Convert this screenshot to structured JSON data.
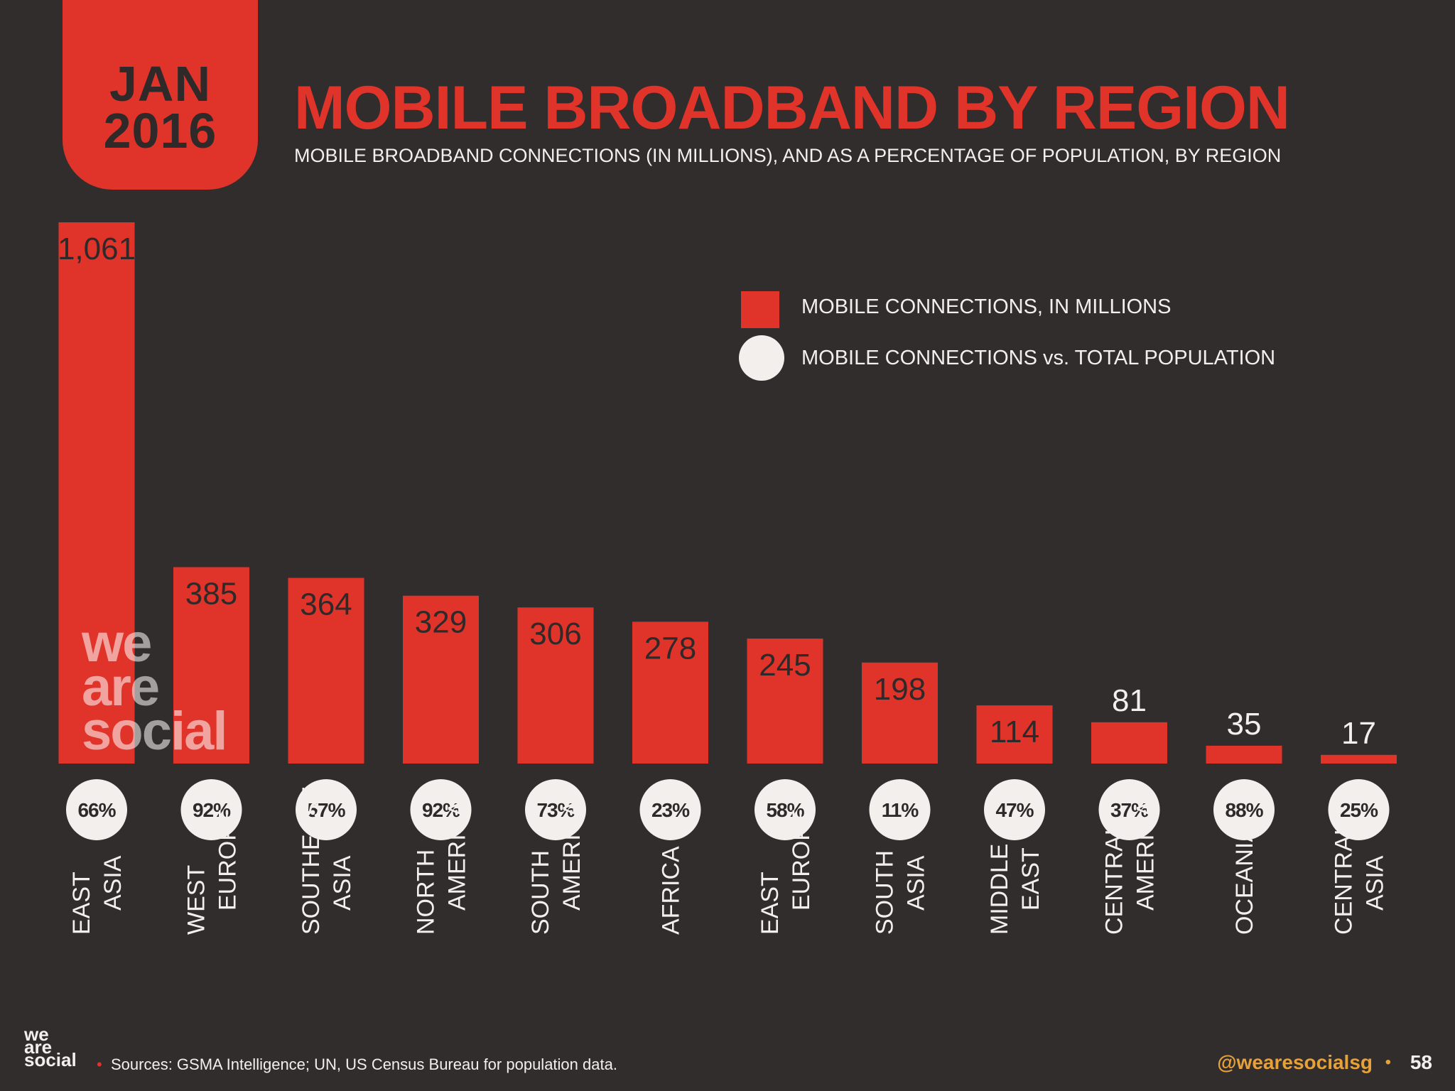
{
  "date_tab": {
    "month": "JAN",
    "year": "2016"
  },
  "title": "MOBILE BROADBAND BY REGION",
  "subtitle": "MOBILE BROADBAND CONNECTIONS (IN MILLIONS), AND AS A PERCENTAGE OF POPULATION, BY REGION",
  "legend": {
    "bars": "MOBILE CONNECTIONS, IN MILLIONS",
    "circles": "MOBILE CONNECTIONS vs. TOTAL POPULATION"
  },
  "watermark": [
    "we",
    "are",
    "social"
  ],
  "colors": {
    "accent": "#e0342b",
    "background": "#312d2c",
    "light": "#f2efed",
    "handle": "#e7a13a"
  },
  "chart_data": {
    "type": "bar",
    "categories": [
      [
        "EAST",
        "ASIA"
      ],
      [
        "WEST",
        "EUROPE"
      ],
      [
        "SOUTHEAST",
        "ASIA"
      ],
      [
        "NORTH",
        "AMERICA"
      ],
      [
        "SOUTH",
        "AMERICA"
      ],
      [
        "AFRICA"
      ],
      [
        "EAST",
        "EUROPE"
      ],
      [
        "SOUTH",
        "ASIA"
      ],
      [
        "MIDDLE",
        "EAST"
      ],
      [
        "CENTRAL",
        "AMERICA"
      ],
      [
        "OCEANIA"
      ],
      [
        "CENTRAL",
        "ASIA"
      ]
    ],
    "series": [
      {
        "name": "MOBILE CONNECTIONS, IN MILLIONS",
        "values": [
          1061,
          385,
          364,
          329,
          306,
          278,
          245,
          198,
          114,
          81,
          35,
          17
        ],
        "labels": [
          "1,061",
          "385",
          "364",
          "329",
          "306",
          "278",
          "245",
          "198",
          "114",
          "81",
          "35",
          "17"
        ]
      },
      {
        "name": "MOBILE CONNECTIONS vs. TOTAL POPULATION",
        "values": [
          66,
          92,
          57,
          92,
          73,
          23,
          58,
          11,
          47,
          37,
          88,
          25
        ],
        "labels": [
          "66%",
          "92%",
          "57%",
          "92%",
          "73%",
          "23%",
          "58%",
          "11%",
          "47%",
          "37%",
          "88%",
          "25%"
        ]
      }
    ],
    "ylim": [
      0,
      1061
    ],
    "grid": false,
    "legend_position": "top-right"
  },
  "footer": {
    "logo": [
      "we",
      "are",
      "social"
    ],
    "source": "Sources: GSMA Intelligence; UN, US Census Bureau for population data.",
    "handle": "@wearesocialsg",
    "page": "58"
  }
}
